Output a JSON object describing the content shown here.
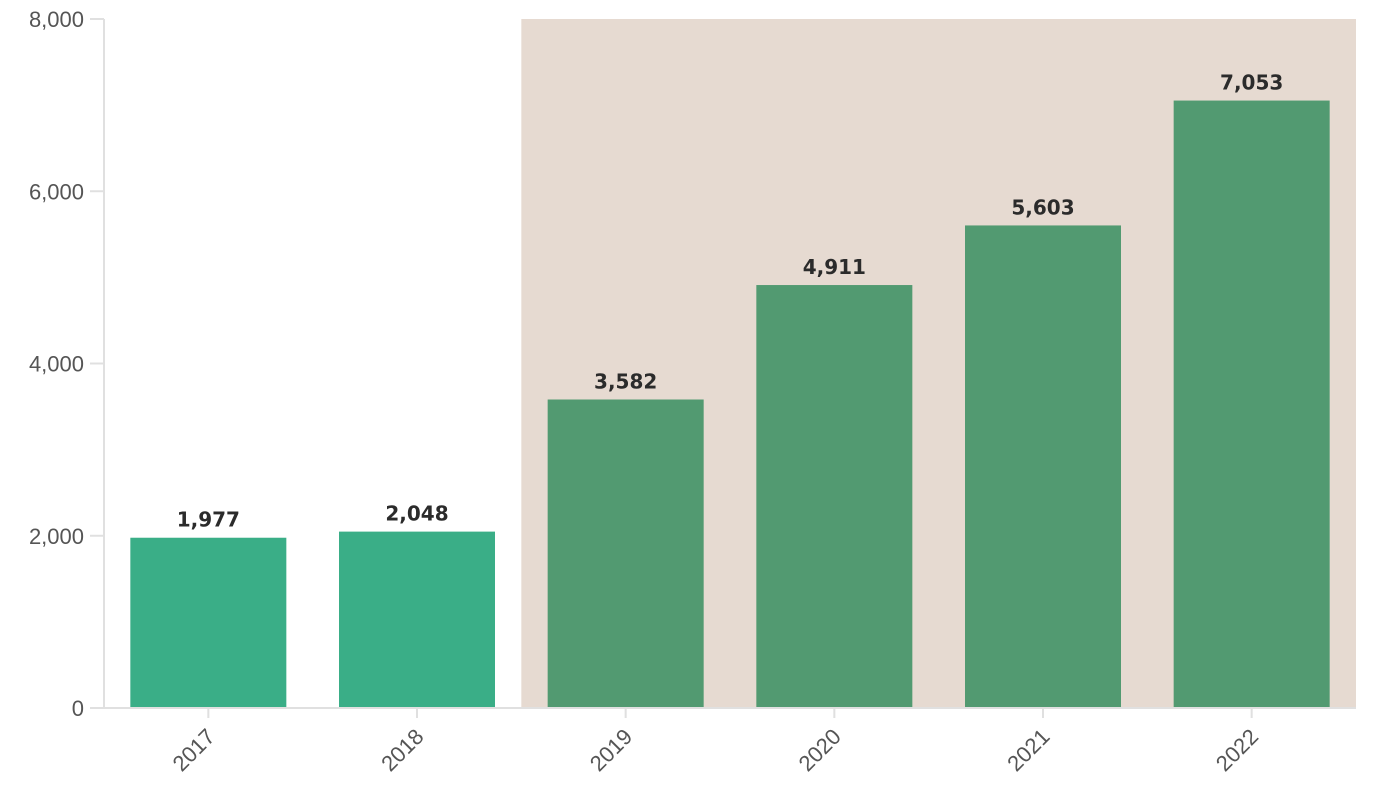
{
  "chart_data": {
    "type": "bar",
    "title": "",
    "xlabel": "",
    "ylabel": "",
    "categories": [
      "2017",
      "2018",
      "2019",
      "2020",
      "2021",
      "2022"
    ],
    "values": [
      1977,
      2048,
      3582,
      4911,
      5603,
      7053
    ],
    "value_labels": [
      "1,977",
      "2,048",
      "3,582",
      "4,911",
      "5,603",
      "7,053"
    ],
    "ylim": [
      0,
      8000
    ],
    "y_ticks": [
      0,
      2000,
      4000,
      6000,
      8000
    ],
    "y_tick_labels": [
      "0",
      "2,000",
      "4,000",
      "6,000",
      "8,000"
    ],
    "grid": false,
    "legend": "none",
    "highlight_range": {
      "from": "2019",
      "to": "2022"
    },
    "colors": {
      "bar": "#3aae87",
      "bar_highlighted": "#529a71",
      "highlight_background": "#e6dad1",
      "axis": "#e0e0e0"
    }
  }
}
